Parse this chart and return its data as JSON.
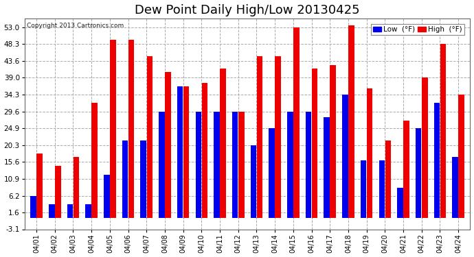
{
  "title": "Dew Point Daily High/Low 20130425",
  "copyright": "Copyright 2013 Cartronics.com",
  "dates": [
    "04/01",
    "04/02",
    "04/03",
    "04/04",
    "04/05",
    "04/06",
    "04/07",
    "04/08",
    "04/09",
    "04/10",
    "04/11",
    "04/12",
    "04/13",
    "04/14",
    "04/15",
    "04/16",
    "04/17",
    "04/18",
    "04/19",
    "04/20",
    "04/21",
    "04/22",
    "04/23",
    "04/24"
  ],
  "low_values": [
    6.2,
    3.8,
    3.8,
    3.8,
    12.0,
    21.5,
    21.5,
    29.6,
    36.5,
    29.6,
    29.6,
    29.6,
    20.3,
    24.9,
    29.6,
    29.6,
    28.0,
    34.3,
    16.0,
    16.0,
    8.5,
    25.0,
    32.0,
    17.0
  ],
  "high_values": [
    18.0,
    14.5,
    17.0,
    32.0,
    49.5,
    49.5,
    45.0,
    40.5,
    36.5,
    37.5,
    41.5,
    29.6,
    45.0,
    45.0,
    53.0,
    41.5,
    42.5,
    53.5,
    36.0,
    21.5,
    27.0,
    39.0,
    48.3,
    34.3
  ],
  "low_color": "#0000ee",
  "high_color": "#ee0000",
  "bg_color": "#ffffff",
  "grid_color": "#aaaaaa",
  "yticks": [
    -3.1,
    1.6,
    6.2,
    10.9,
    15.6,
    20.3,
    24.9,
    29.6,
    34.3,
    39.0,
    43.6,
    48.3,
    53.0
  ],
  "ymin": -3.1,
  "ymax": 55.5,
  "title_fontsize": 13,
  "legend_low_label": "Low  (°F)",
  "legend_high_label": "High  (°F)"
}
